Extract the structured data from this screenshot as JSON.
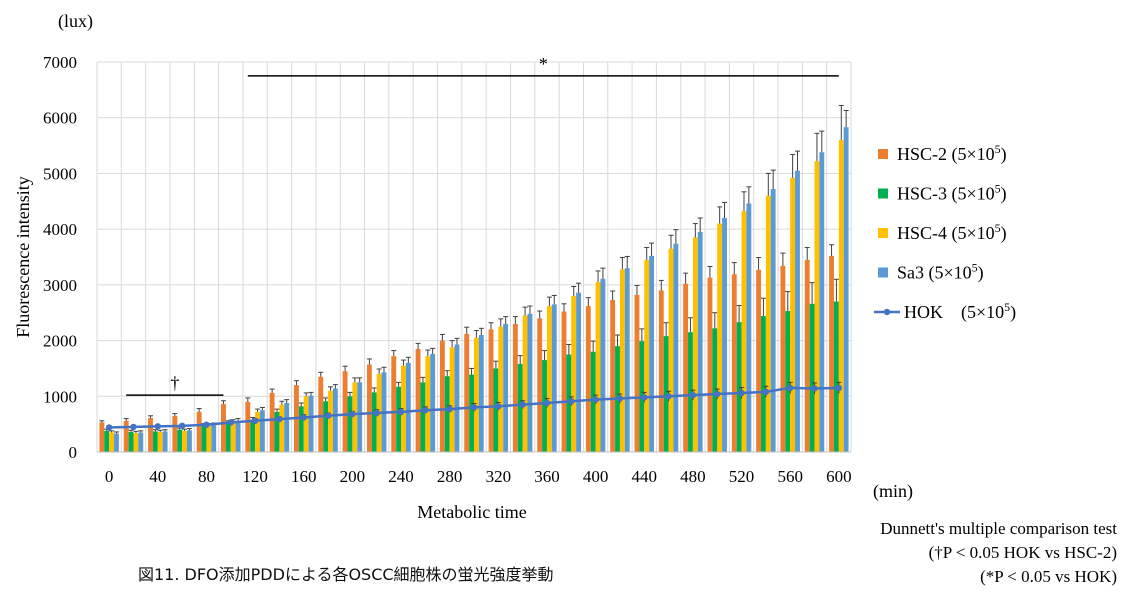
{
  "chart_data": {
    "type": "bar",
    "unit_label": "(lux)",
    "ylabel": "Fluorescence intensity",
    "xlabel": "Metabolic time",
    "x_unit_label": "(min)",
    "ylim": [
      0,
      7000
    ],
    "yticks": [
      0,
      1000,
      2000,
      3000,
      4000,
      5000,
      6000,
      7000
    ],
    "x": [
      0,
      20,
      40,
      60,
      80,
      100,
      120,
      140,
      160,
      180,
      200,
      220,
      240,
      260,
      280,
      300,
      320,
      340,
      360,
      380,
      400,
      420,
      440,
      460,
      480,
      500,
      520,
      540,
      560,
      580,
      600
    ],
    "xtick_labels": [
      "0",
      "40",
      "80",
      "120",
      "160",
      "200",
      "240",
      "280",
      "320",
      "360",
      "400",
      "440",
      "480",
      "520",
      "560",
      "600"
    ],
    "grid": true,
    "legend_position": "right",
    "series": [
      {
        "name": "HSC-2 (5×10",
        "sup": "5",
        "name_end": ")",
        "color": "#ED7D31",
        "kind": "bar",
        "values": [
          530,
          560,
          610,
          650,
          720,
          860,
          900,
          1060,
          1200,
          1350,
          1450,
          1570,
          1720,
          1850,
          2000,
          2120,
          2200,
          2300,
          2400,
          2520,
          2620,
          2730,
          2820,
          2900,
          3020,
          3130,
          3190,
          3270,
          3340,
          3450,
          3520
        ],
        "errors": [
          30,
          40,
          40,
          40,
          60,
          60,
          70,
          70,
          80,
          80,
          90,
          100,
          100,
          100,
          110,
          120,
          120,
          130,
          130,
          140,
          150,
          160,
          170,
          180,
          190,
          200,
          210,
          220,
          230,
          220,
          200
        ]
      },
      {
        "name": "HSC-3 (5×10",
        "sup": "5",
        "name_end": ")",
        "color": "#00B050",
        "kind": "bar",
        "values": [
          380,
          360,
          370,
          400,
          470,
          520,
          580,
          720,
          820,
          910,
          1000,
          1070,
          1170,
          1250,
          1360,
          1390,
          1500,
          1580,
          1650,
          1750,
          1800,
          1900,
          1990,
          2080,
          2150,
          2220,
          2330,
          2440,
          2530,
          2660,
          2700
        ],
        "errors": [
          30,
          30,
          30,
          30,
          40,
          40,
          40,
          50,
          60,
          60,
          70,
          80,
          80,
          90,
          100,
          110,
          130,
          150,
          170,
          180,
          190,
          200,
          220,
          240,
          260,
          280,
          300,
          320,
          350,
          380,
          400
        ]
      },
      {
        "name": "HSC-4 (5×10",
        "sup": "5",
        "name_end": ")",
        "color": "#FFC000",
        "kind": "bar",
        "values": [
          350,
          340,
          360,
          380,
          470,
          540,
          720,
          850,
          1000,
          1100,
          1250,
          1400,
          1550,
          1720,
          1880,
          2050,
          2250,
          2450,
          2620,
          2800,
          3050,
          3280,
          3450,
          3650,
          3850,
          4100,
          4320,
          4600,
          4920,
          5220,
          5600
        ],
        "errors": [
          30,
          30,
          30,
          30,
          40,
          40,
          50,
          60,
          60,
          70,
          80,
          90,
          100,
          110,
          120,
          130,
          140,
          150,
          160,
          170,
          200,
          210,
          220,
          240,
          250,
          300,
          350,
          400,
          420,
          500,
          620
        ]
      },
      {
        "name": "Sa3 (5×10",
        "sup": "5",
        "name_end": ")",
        "color": "#5B9BD5",
        "kind": "bar",
        "values": [
          330,
          350,
          370,
          390,
          480,
          560,
          750,
          880,
          1010,
          1140,
          1250,
          1430,
          1600,
          1760,
          1930,
          2100,
          2300,
          2480,
          2650,
          2860,
          3110,
          3300,
          3520,
          3740,
          3950,
          4200,
          4460,
          4720,
          5050,
          5380,
          5830
        ],
        "errors": [
          30,
          30,
          30,
          30,
          40,
          40,
          50,
          60,
          60,
          70,
          80,
          90,
          100,
          100,
          110,
          120,
          130,
          140,
          160,
          170,
          190,
          210,
          230,
          250,
          250,
          280,
          300,
          340,
          350,
          380,
          300
        ]
      },
      {
        "name": "HOK　(5×10",
        "sup": "5",
        "name_end": ")",
        "color": "#4472C4",
        "kind": "line",
        "values": [
          440,
          450,
          460,
          470,
          490,
          530,
          560,
          590,
          620,
          650,
          680,
          700,
          720,
          750,
          770,
          800,
          820,
          850,
          880,
          910,
          940,
          960,
          980,
          1000,
          1020,
          1040,
          1060,
          1080,
          1150,
          1140,
          1150
        ],
        "errors": [
          30,
          30,
          30,
          30,
          30,
          40,
          40,
          40,
          50,
          50,
          50,
          60,
          60,
          60,
          60,
          70,
          70,
          70,
          80,
          80,
          80,
          80,
          90,
          90,
          90,
          90,
          100,
          100,
          100,
          100,
          100
        ]
      }
    ],
    "significance": [
      {
        "symbol": "†",
        "from_x": 20,
        "to_x": 100,
        "y": 1020
      },
      {
        "symbol": "*",
        "from_x": 120,
        "to_x": 600,
        "y": 6750
      }
    ]
  },
  "caption": "図11. DFO添加PDDによる各OSCC細胞株の蛍光強度挙動",
  "notes": [
    "Dunnett's multiple comparison test",
    "(†P < 0.05 HOK vs HSC-2)",
    "(*P < 0.05 vs HOK)"
  ]
}
